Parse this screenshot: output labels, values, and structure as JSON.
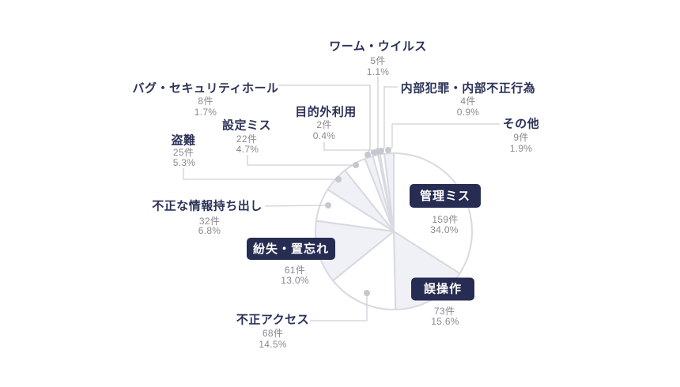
{
  "chart_data": {
    "type": "pie",
    "title": "",
    "direction": "clockwise",
    "start_angle_deg": 0,
    "unit": "件",
    "legend_position": "callout-labels",
    "slices": [
      {
        "label": "管理ミス",
        "value": 34.0,
        "count": 159,
        "count_label": "159件",
        "pct_label": "34.0%",
        "badge": true
      },
      {
        "label": "誤操作",
        "value": 15.6,
        "count": 73,
        "count_label": "73件",
        "pct_label": "15.6%",
        "badge": true
      },
      {
        "label": "不正アクセス",
        "value": 14.5,
        "count": 68,
        "count_label": "68件",
        "pct_label": "14.5%",
        "badge": false
      },
      {
        "label": "紛失・置忘れ",
        "value": 13.0,
        "count": 61,
        "count_label": "61件",
        "pct_label": "13.0%",
        "badge": true
      },
      {
        "label": "不正な情報持ち出し",
        "value": 6.8,
        "count": 32,
        "count_label": "32件",
        "pct_label": "6.8%",
        "badge": false
      },
      {
        "label": "盗難",
        "value": 5.3,
        "count": 25,
        "count_label": "25件",
        "pct_label": "5.3%",
        "badge": false
      },
      {
        "label": "設定ミス",
        "value": 4.7,
        "count": 22,
        "count_label": "22件",
        "pct_label": "4.7%",
        "badge": false
      },
      {
        "label": "バグ・セキュリティホール",
        "value": 1.7,
        "count": 8,
        "count_label": "8件",
        "pct_label": "1.7%",
        "badge": false
      },
      {
        "label": "ワーム・ウイルス",
        "value": 1.1,
        "count": 5,
        "count_label": "5件",
        "pct_label": "1.1%",
        "badge": false
      },
      {
        "label": "目的外利用",
        "value": 0.4,
        "count": 2,
        "count_label": "2件",
        "pct_label": "0.4%",
        "badge": false
      },
      {
        "label": "内部犯罪・内部不正行為",
        "value": 0.9,
        "count": 4,
        "count_label": "4件",
        "pct_label": "0.9%",
        "badge": false
      },
      {
        "label": "その他",
        "value": 1.9,
        "count": 9,
        "count_label": "9件",
        "pct_label": "1.9%",
        "badge": false
      }
    ]
  },
  "colors": {
    "background": "#ffffff",
    "slice_fill_even": "#ffffff",
    "slice_fill_odd": "#f0f0f7",
    "slice_stroke": "#d9d9e0",
    "leader_line": "#d0d0d8",
    "leader_dot": "#c7c7d0",
    "label_title": "#2b3158",
    "label_value": "#8a8a92",
    "badge_bg": "#272c52",
    "badge_text": "#ffffff"
  }
}
